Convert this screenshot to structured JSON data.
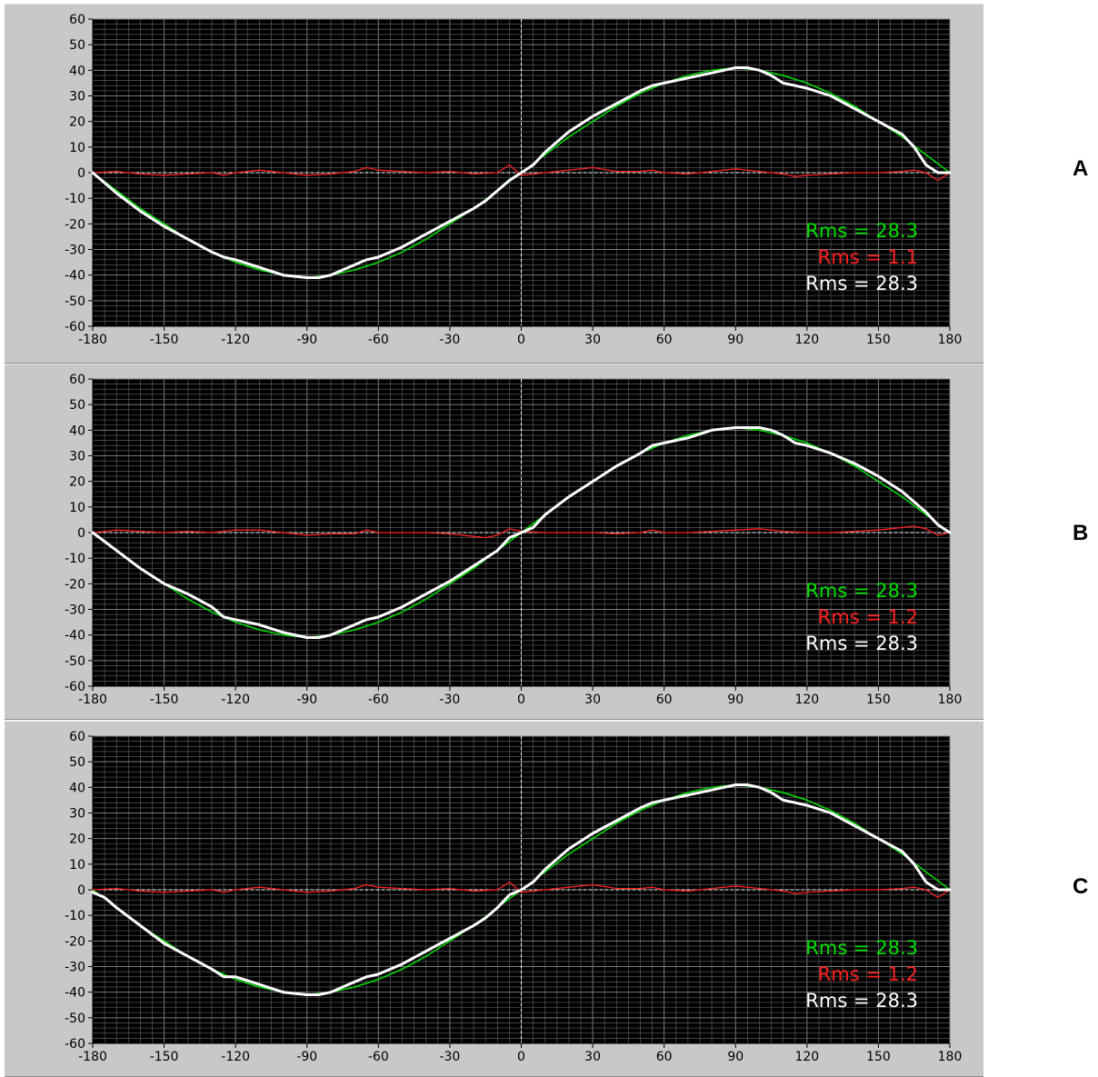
{
  "colors": {
    "panel": "#c8c8c8",
    "plot_bg": "#000000",
    "grid": "#5a5a5a",
    "fit": "#00e000",
    "residual": "#ff2020",
    "measured": "#ffffff"
  },
  "chart_data": [
    {
      "type": "line",
      "panel_label": "A",
      "xlim": [
        -180,
        180
      ],
      "ylim": [
        -60,
        60
      ],
      "xticks": [
        -180,
        -150,
        -120,
        -90,
        -60,
        -30,
        0,
        30,
        60,
        90,
        120,
        150,
        180
      ],
      "yticks": [
        60,
        50,
        40,
        30,
        20,
        10,
        0,
        -10,
        -20,
        -30,
        -40,
        -50,
        -60
      ],
      "grid": true,
      "rms_labels": [
        {
          "text": "Rms = 28.3",
          "color": "#00e000"
        },
        {
          "text": "Rms = 1.1",
          "color": "#ff2020"
        },
        {
          "text": "Rms = 28.3",
          "color": "#ffffff"
        }
      ],
      "series": [
        {
          "role": "fit",
          "color": "#00e000",
          "width": 1.5,
          "x": [
            -180,
            -170,
            -160,
            -150,
            -140,
            -130,
            -120,
            -110,
            -100,
            -90,
            -80,
            -70,
            -60,
            -50,
            -40,
            -30,
            -20,
            -10,
            0,
            10,
            20,
            30,
            40,
            50,
            60,
            70,
            80,
            90,
            100,
            110,
            120,
            130,
            140,
            150,
            160,
            170,
            180
          ],
          "y": [
            0,
            -7,
            -14,
            -20,
            -26,
            -31,
            -35,
            -38,
            -40,
            -41,
            -40,
            -38,
            -35,
            -31,
            -26,
            -20,
            -14,
            -7,
            0,
            7,
            14,
            20,
            26,
            31,
            35,
            38,
            40,
            41,
            40,
            38,
            35,
            31,
            26,
            20,
            14,
            7,
            0
          ]
        },
        {
          "role": "measured",
          "color": "#ffffff",
          "width": 3,
          "x": [
            -180,
            -175,
            -170,
            -160,
            -150,
            -140,
            -130,
            -125,
            -120,
            -110,
            -100,
            -90,
            -85,
            -80,
            -75,
            -70,
            -65,
            -60,
            -50,
            -40,
            -30,
            -20,
            -15,
            -10,
            -5,
            0,
            5,
            10,
            20,
            30,
            40,
            50,
            55,
            60,
            70,
            80,
            90,
            95,
            100,
            105,
            110,
            115,
            120,
            130,
            140,
            150,
            160,
            165,
            170,
            175,
            180
          ],
          "y": [
            0,
            -4,
            -8,
            -15,
            -21,
            -26,
            -31,
            -33,
            -34,
            -37,
            -40,
            -41,
            -41,
            -40,
            -38,
            -36,
            -34,
            -33,
            -29,
            -24,
            -19,
            -14,
            -11,
            -7,
            -3,
            0,
            3,
            8,
            16,
            22,
            27,
            32,
            34,
            35,
            37,
            39,
            41,
            41,
            40,
            38,
            35,
            34,
            33,
            30,
            25,
            20,
            15,
            10,
            3,
            0,
            0
          ]
        },
        {
          "role": "residual",
          "color": "#ff2020",
          "width": 1.3,
          "x": [
            -180,
            -170,
            -160,
            -150,
            -140,
            -130,
            -125,
            -120,
            -110,
            -100,
            -90,
            -80,
            -70,
            -65,
            -60,
            -50,
            -40,
            -30,
            -20,
            -10,
            -5,
            0,
            10,
            20,
            30,
            40,
            50,
            55,
            60,
            70,
            80,
            90,
            100,
            110,
            115,
            120,
            130,
            140,
            150,
            160,
            165,
            170,
            175,
            180
          ],
          "y": [
            0,
            0.5,
            -0.5,
            -1,
            -0.5,
            0,
            -1,
            0,
            1,
            0,
            -1,
            -0.5,
            0.5,
            2,
            1,
            0.5,
            0,
            0.5,
            -0.5,
            0,
            3,
            -1,
            0,
            1,
            2,
            0.5,
            0.5,
            1,
            0,
            -0.5,
            0.5,
            1.5,
            0.5,
            -0.5,
            -1.5,
            -1,
            -0.5,
            0,
            0,
            0.5,
            1,
            0,
            -3,
            0
          ]
        }
      ]
    },
    {
      "type": "line",
      "panel_label": "B",
      "xlim": [
        -180,
        180
      ],
      "ylim": [
        -60,
        60
      ],
      "xticks": [
        -180,
        -150,
        -120,
        -90,
        -60,
        -30,
        0,
        30,
        60,
        90,
        120,
        150,
        180
      ],
      "yticks": [
        60,
        50,
        40,
        30,
        20,
        10,
        0,
        -10,
        -20,
        -30,
        -40,
        -50,
        -60
      ],
      "grid": true,
      "rms_labels": [
        {
          "text": "Rms = 28.3",
          "color": "#00e000"
        },
        {
          "text": "Rms = 1.2",
          "color": "#ff2020"
        },
        {
          "text": "Rms = 28.3",
          "color": "#ffffff"
        }
      ],
      "series": [
        {
          "role": "fit",
          "color": "#00e000",
          "width": 1.5,
          "x": [
            -180,
            -170,
            -160,
            -150,
            -140,
            -130,
            -120,
            -110,
            -100,
            -90,
            -80,
            -70,
            -60,
            -50,
            -40,
            -30,
            -20,
            -10,
            0,
            10,
            20,
            30,
            40,
            50,
            60,
            70,
            80,
            90,
            100,
            110,
            120,
            130,
            140,
            150,
            160,
            170,
            180
          ],
          "y": [
            0,
            -7,
            -14,
            -20,
            -26,
            -31,
            -35,
            -38,
            -40,
            -41,
            -40,
            -38,
            -35,
            -31,
            -26,
            -20,
            -14,
            -7,
            0,
            7,
            14,
            20,
            26,
            31,
            35,
            38,
            40,
            41,
            40,
            38,
            35,
            31,
            26,
            20,
            14,
            7,
            0
          ]
        },
        {
          "role": "measured",
          "color": "#ffffff",
          "width": 3,
          "x": [
            -180,
            -170,
            -160,
            -150,
            -140,
            -130,
            -125,
            -120,
            -110,
            -100,
            -90,
            -85,
            -80,
            -75,
            -70,
            -65,
            -60,
            -50,
            -40,
            -30,
            -20,
            -10,
            -5,
            0,
            5,
            10,
            20,
            30,
            40,
            50,
            55,
            60,
            70,
            80,
            90,
            100,
            105,
            110,
            115,
            120,
            130,
            140,
            150,
            160,
            165,
            170,
            175,
            180
          ],
          "y": [
            0,
            -7,
            -14,
            -20,
            -24,
            -29,
            -33,
            -34,
            -36,
            -39,
            -41,
            -41,
            -40,
            -38,
            -36,
            -34,
            -33,
            -29,
            -24,
            -19,
            -13,
            -7,
            -2,
            0,
            2,
            7,
            14,
            20,
            26,
            31,
            34,
            35,
            37,
            40,
            41,
            41,
            40,
            38,
            35,
            34,
            31,
            27,
            22,
            16,
            12,
            8,
            3,
            0
          ]
        },
        {
          "role": "residual",
          "color": "#ff2020",
          "width": 1.3,
          "x": [
            -180,
            -170,
            -160,
            -150,
            -140,
            -130,
            -120,
            -110,
            -100,
            -90,
            -80,
            -70,
            -65,
            -60,
            -50,
            -40,
            -30,
            -20,
            -15,
            -10,
            -5,
            0,
            10,
            20,
            30,
            40,
            50,
            55,
            60,
            70,
            80,
            90,
            100,
            110,
            120,
            130,
            140,
            150,
            160,
            165,
            170,
            175,
            180
          ],
          "y": [
            0,
            1,
            0.5,
            0,
            0.5,
            0,
            1,
            1,
            0,
            -1,
            -0.5,
            -0.5,
            1,
            0,
            0,
            0,
            -0.5,
            -1.5,
            -2,
            -1,
            1.5,
            0.5,
            0,
            0,
            0,
            -0.5,
            0,
            1,
            0,
            0,
            0.5,
            1,
            1.5,
            0.5,
            0,
            0,
            0.5,
            1,
            2,
            2.5,
            1.5,
            -1,
            0
          ]
        }
      ]
    },
    {
      "type": "line",
      "panel_label": "C",
      "xlim": [
        -180,
        180
      ],
      "ylim": [
        -60,
        60
      ],
      "xticks": [
        -180,
        -150,
        -120,
        -90,
        -60,
        -30,
        0,
        30,
        60,
        90,
        120,
        150,
        180
      ],
      "yticks": [
        60,
        50,
        40,
        30,
        20,
        10,
        0,
        -10,
        -20,
        -30,
        -40,
        -50,
        -60
      ],
      "grid": true,
      "rms_labels": [
        {
          "text": "Rms = 28.3",
          "color": "#00e000"
        },
        {
          "text": "Rms = 1.2",
          "color": "#ff2020"
        },
        {
          "text": "Rms = 28.3",
          "color": "#ffffff"
        }
      ],
      "series": [
        {
          "role": "fit",
          "color": "#00e000",
          "width": 1.5,
          "x": [
            -180,
            -170,
            -160,
            -150,
            -140,
            -130,
            -120,
            -110,
            -100,
            -90,
            -80,
            -70,
            -60,
            -50,
            -40,
            -30,
            -20,
            -10,
            0,
            10,
            20,
            30,
            40,
            50,
            60,
            70,
            80,
            90,
            100,
            110,
            120,
            130,
            140,
            150,
            160,
            170,
            180
          ],
          "y": [
            0,
            -7,
            -14,
            -20,
            -26,
            -31,
            -35,
            -38,
            -40,
            -41,
            -40,
            -38,
            -35,
            -31,
            -26,
            -20,
            -14,
            -7,
            0,
            7,
            14,
            20,
            26,
            31,
            35,
            38,
            40,
            41,
            40,
            38,
            35,
            31,
            26,
            20,
            14,
            7,
            0
          ]
        },
        {
          "role": "measured",
          "color": "#ffffff",
          "width": 3,
          "x": [
            -180,
            -175,
            -170,
            -160,
            -150,
            -140,
            -130,
            -125,
            -120,
            -110,
            -100,
            -90,
            -85,
            -80,
            -75,
            -70,
            -65,
            -60,
            -50,
            -40,
            -30,
            -20,
            -15,
            -10,
            -5,
            0,
            5,
            10,
            20,
            30,
            40,
            50,
            55,
            60,
            70,
            80,
            90,
            95,
            100,
            105,
            110,
            115,
            120,
            130,
            140,
            150,
            160,
            165,
            170,
            175,
            180
          ],
          "y": [
            -1,
            -3,
            -7,
            -14,
            -21,
            -26,
            -31,
            -34,
            -34,
            -37,
            -40,
            -41,
            -41,
            -40,
            -38,
            -36,
            -34,
            -33,
            -29,
            -24,
            -19,
            -14,
            -11,
            -7,
            -2,
            0,
            3,
            8,
            16,
            22,
            27,
            32,
            34,
            35,
            37,
            39,
            41,
            41,
            40,
            38,
            35,
            34,
            33,
            30,
            25,
            20,
            15,
            10,
            3,
            0,
            0
          ]
        },
        {
          "role": "residual",
          "color": "#ff2020",
          "width": 1.3,
          "x": [
            -180,
            -170,
            -160,
            -150,
            -140,
            -130,
            -125,
            -120,
            -110,
            -100,
            -90,
            -80,
            -70,
            -65,
            -60,
            -50,
            -40,
            -30,
            -20,
            -10,
            -5,
            0,
            10,
            20,
            30,
            40,
            50,
            55,
            60,
            70,
            80,
            90,
            100,
            110,
            115,
            120,
            130,
            140,
            150,
            160,
            165,
            170,
            175,
            180
          ],
          "y": [
            0,
            0.5,
            -0.5,
            -1,
            -0.5,
            0,
            -1,
            0,
            1,
            0,
            -1,
            -0.5,
            0.5,
            2,
            1,
            0.5,
            0,
            0.5,
            -0.5,
            0,
            3,
            -1,
            0,
            1,
            2,
            0.5,
            0.5,
            1,
            0,
            -0.5,
            0.5,
            1.5,
            0.5,
            -0.5,
            -1.5,
            -1,
            -0.5,
            0,
            0,
            0.5,
            1,
            0,
            -3,
            0
          ]
        }
      ]
    }
  ]
}
